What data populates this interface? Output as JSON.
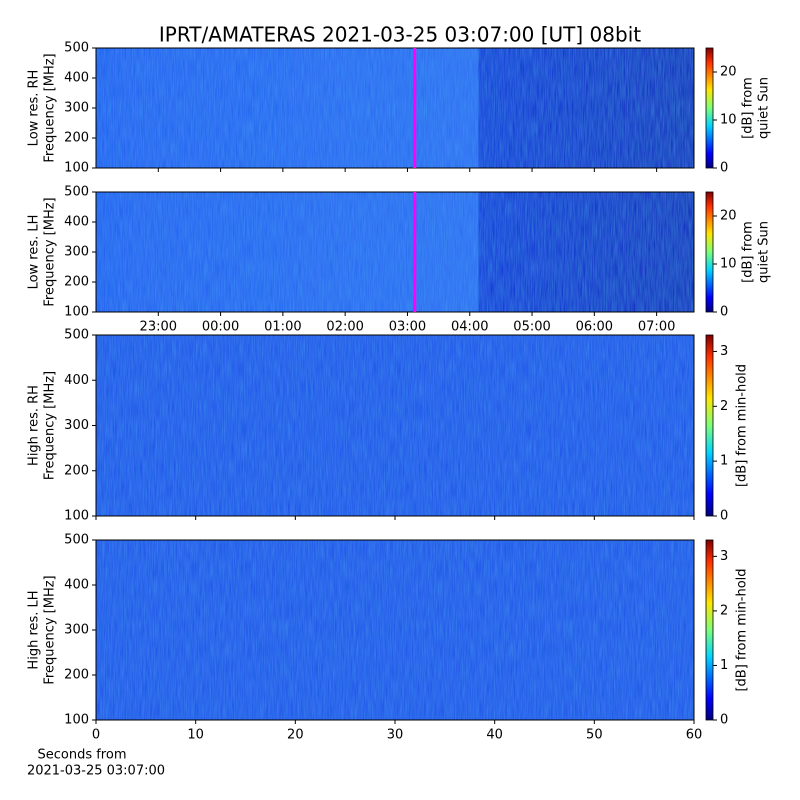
{
  "chart_data": [
    {
      "type": "heatmap",
      "title": "IPRT/AMATERAS 2021-03-25 03:07:00 [UT]   08bit",
      "ylabel": [
        "Low res. RH",
        "Frequency [MHz]"
      ],
      "ylim": [
        100,
        500
      ],
      "yticks": [
        100,
        200,
        300,
        400,
        500
      ],
      "xlim": [
        22.0,
        31.6
      ],
      "xticks": [
        {
          "value": 23,
          "label": "23:00"
        },
        {
          "value": 24,
          "label": "00:00"
        },
        {
          "value": 25,
          "label": "01:00"
        },
        {
          "value": 26,
          "label": "02:00"
        },
        {
          "value": 27,
          "label": "03:00"
        },
        {
          "value": 28,
          "label": "04:00"
        },
        {
          "value": 29,
          "label": "05:00"
        },
        {
          "value": 30,
          "label": "06:00"
        },
        {
          "value": 31,
          "label": "07:00"
        }
      ],
      "show_xticklabels": false,
      "marker": {
        "x": 27.117,
        "color": "#ff00ff"
      },
      "colorbar": {
        "label": [
          "[dB] from",
          "quiet Sun"
        ],
        "lim": [
          0,
          25
        ],
        "ticks": [
          0,
          10,
          20
        ]
      }
    },
    {
      "type": "heatmap",
      "ylabel": [
        "Low res. LH",
        "Frequency [MHz]"
      ],
      "ylim": [
        100,
        500
      ],
      "yticks": [
        100,
        200,
        300,
        400,
        500
      ],
      "xlim": [
        22.0,
        31.6
      ],
      "xticks": [
        {
          "value": 23,
          "label": "23:00"
        },
        {
          "value": 24,
          "label": "00:00"
        },
        {
          "value": 25,
          "label": "01:00"
        },
        {
          "value": 26,
          "label": "02:00"
        },
        {
          "value": 27,
          "label": "03:00"
        },
        {
          "value": 28,
          "label": "04:00"
        },
        {
          "value": 29,
          "label": "05:00"
        },
        {
          "value": 30,
          "label": "06:00"
        },
        {
          "value": 31,
          "label": "07:00"
        }
      ],
      "show_xticklabels": true,
      "marker": {
        "x": 27.117,
        "color": "#ff00ff"
      },
      "colorbar": {
        "label": [
          "[dB] from",
          "quiet Sun"
        ],
        "lim": [
          0,
          25
        ],
        "ticks": [
          0,
          10,
          20
        ]
      }
    },
    {
      "type": "heatmap",
      "ylabel": [
        "High res. RH",
        "Frequency [MHz]"
      ],
      "ylim": [
        100,
        500
      ],
      "yticks": [
        100,
        200,
        300,
        400,
        500
      ],
      "xlim": [
        0,
        60
      ],
      "xticks": [
        0,
        10,
        20,
        30,
        40,
        50,
        60
      ],
      "show_xticklabels": false,
      "colorbar": {
        "label": [
          "[dB] from min-hold"
        ],
        "lim": [
          0,
          3.3
        ],
        "ticks": [
          0,
          1,
          2,
          3
        ]
      }
    },
    {
      "type": "heatmap",
      "ylabel": [
        "High res. LH",
        "Frequency [MHz]"
      ],
      "ylim": [
        100,
        500
      ],
      "yticks": [
        100,
        200,
        300,
        400,
        500
      ],
      "xlim": [
        0,
        60
      ],
      "xticks": [
        0,
        10,
        20,
        30,
        40,
        50,
        60
      ],
      "show_xticklabels": true,
      "xlabel": [
        "Seconds from",
        "2021-03-25 03:07:00"
      ],
      "colorbar": {
        "label": [
          "[dB] from min-hold"
        ],
        "lim": [
          0,
          3.3
        ],
        "ticks": [
          0,
          1,
          2,
          3
        ]
      }
    }
  ]
}
